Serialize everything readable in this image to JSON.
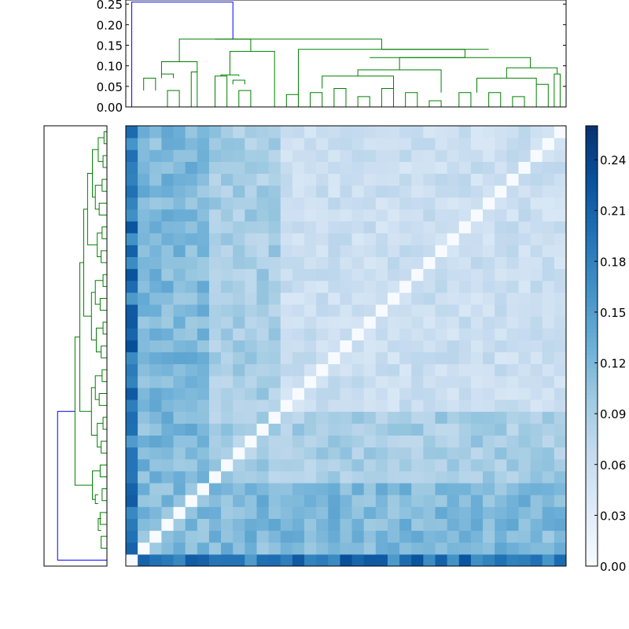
{
  "chart_data": [
    {
      "type": "heatmap",
      "title": "",
      "xlabel": "",
      "ylabel": "",
      "matrix_size": 37,
      "matrix_encoding": "values defined by palette levels; pair colors shown are light blue off-diagonal, white diagonal",
      "grid": false,
      "colormap": "Blues",
      "colorbar": {
        "range": [
          0.0,
          0.26
        ],
        "ticks": [
          0.0,
          0.03,
          0.06,
          0.09,
          0.12,
          0.15,
          0.18,
          0.21,
          0.24
        ],
        "tick_labels": [
          "0.00",
          "0.03",
          "0.06",
          "0.09",
          "0.12",
          "0.15",
          "0.18",
          "0.21",
          "0.24"
        ],
        "placement": "right"
      }
    },
    {
      "type": "dendrogram",
      "orientation": "top",
      "ylim": [
        0.0,
        0.26
      ],
      "yticks": [
        "0.00",
        "0.05",
        "0.10",
        "0.15",
        "0.20",
        "0.25"
      ],
      "root_height": 0.255,
      "colors": {
        "root_link": "#0000ff",
        "cluster_links": "#008000"
      }
    },
    {
      "type": "dendrogram",
      "orientation": "left",
      "axis_ticks_visible": false,
      "colors": {
        "root_link": "#0000ff",
        "cluster_links": "#008000"
      }
    }
  ],
  "palette": {
    "low": "#f7fbff",
    "mid": "#9ecae1",
    "high": "#08306b",
    "frame": "#000000"
  }
}
